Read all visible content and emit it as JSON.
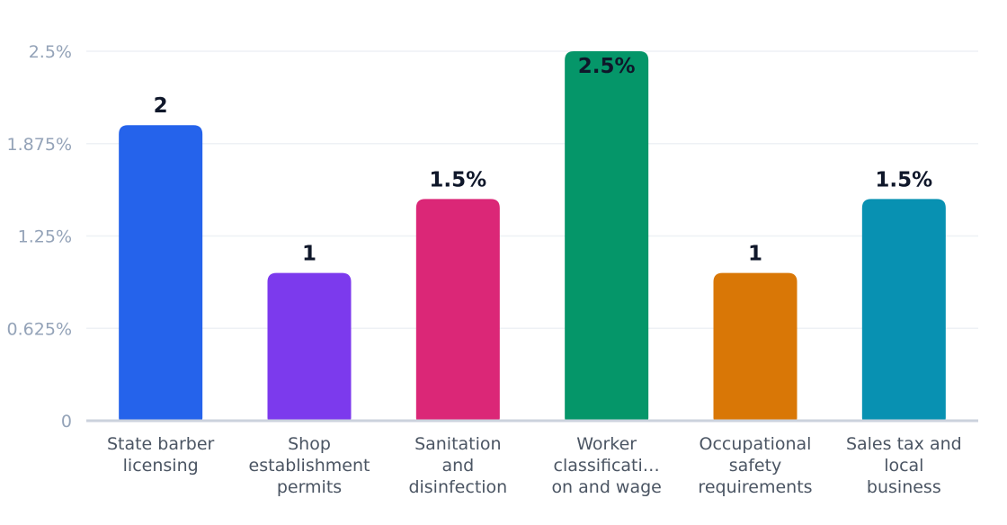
{
  "chart_data": {
    "type": "bar",
    "title": "",
    "xlabel": "",
    "ylabel": "",
    "ylim": [
      0,
      2.5
    ],
    "y_ticks": [
      "0",
      "0.625%",
      "1.25%",
      "1.875%",
      "2.5%"
    ],
    "grid": true,
    "legend": "none",
    "categories": [
      [
        "State barber",
        "licensing"
      ],
      [
        "Shop",
        "establishment",
        "permits"
      ],
      [
        "Sanitation",
        "and",
        "disinfection"
      ],
      [
        "Worker",
        "classificati…",
        "on and wage"
      ],
      [
        "Occupational",
        "safety",
        "requirements"
      ],
      [
        "Sales tax and",
        "local",
        "business"
      ]
    ],
    "values": [
      2,
      1,
      1.5,
      2.5,
      1,
      1.5
    ],
    "data_labels": [
      "2",
      "1",
      "1.5%",
      "2.5%",
      "1",
      "1.5%"
    ],
    "colors": [
      "#2563eb",
      "#7c3aed",
      "#db2777",
      "#059669",
      "#d97706",
      "#0891b2"
    ]
  }
}
